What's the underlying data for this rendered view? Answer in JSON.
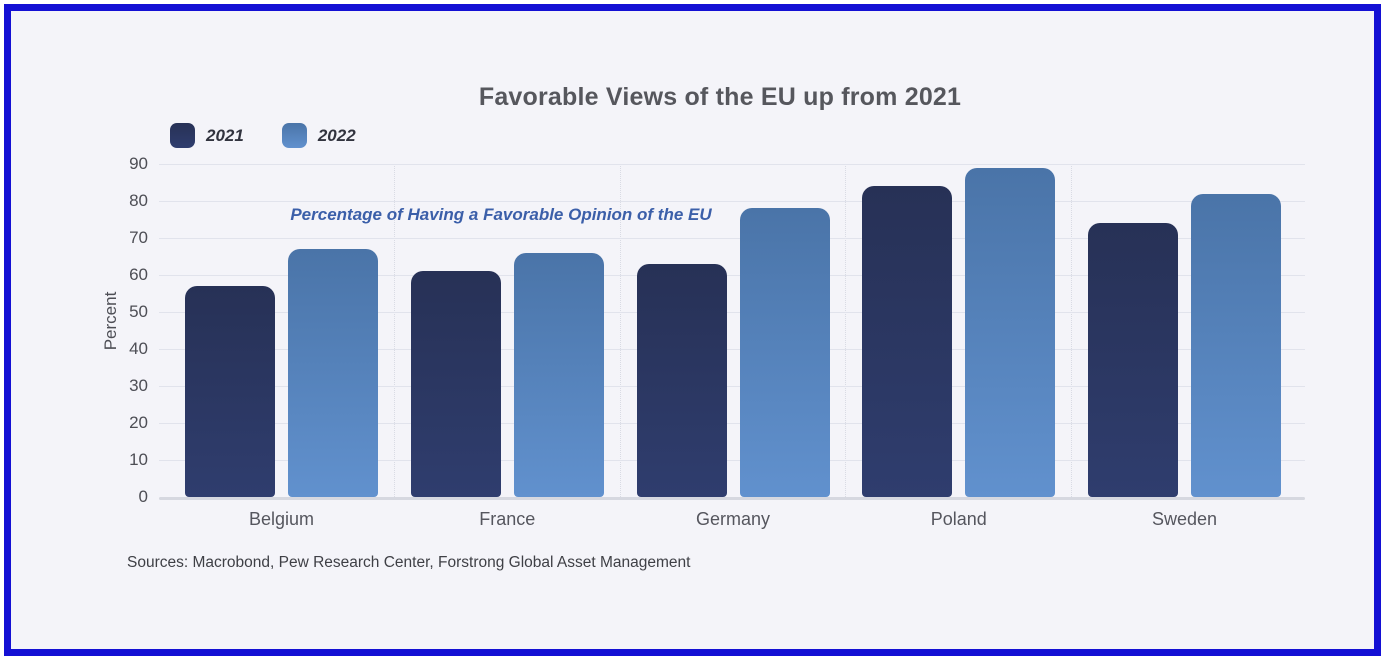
{
  "window": {
    "border_color": "#1410d4",
    "background_color": "#f4f4f9"
  },
  "chart_data": {
    "type": "bar",
    "title": "Favorable Views of the EU up from 2021",
    "annotation": "Percentage of Having a Favorable Opinion of the EU",
    "xlabel": "",
    "ylabel": "Percent",
    "ylim": [
      0,
      90
    ],
    "yticks": [
      0,
      10,
      20,
      30,
      40,
      50,
      60,
      70,
      80,
      90
    ],
    "grid": "horizontal-solid-with-dotted-category-separators",
    "legend_position": "top-left",
    "categories": [
      "Belgium",
      "France",
      "Germany",
      "Poland",
      "Sweden"
    ],
    "series": [
      {
        "name": "2021",
        "values": [
          57,
          61,
          63,
          84,
          74
        ],
        "color_top": "#273156",
        "color_bottom": "#2f3d6e"
      },
      {
        "name": "2022",
        "values": [
          67,
          66,
          78,
          89,
          82
        ],
        "color_top": "#4a74a8",
        "color_bottom": "#6191ce"
      }
    ],
    "sources": "Sources: Macrobond, Pew Research Center, Forstrong Global Asset Management"
  }
}
